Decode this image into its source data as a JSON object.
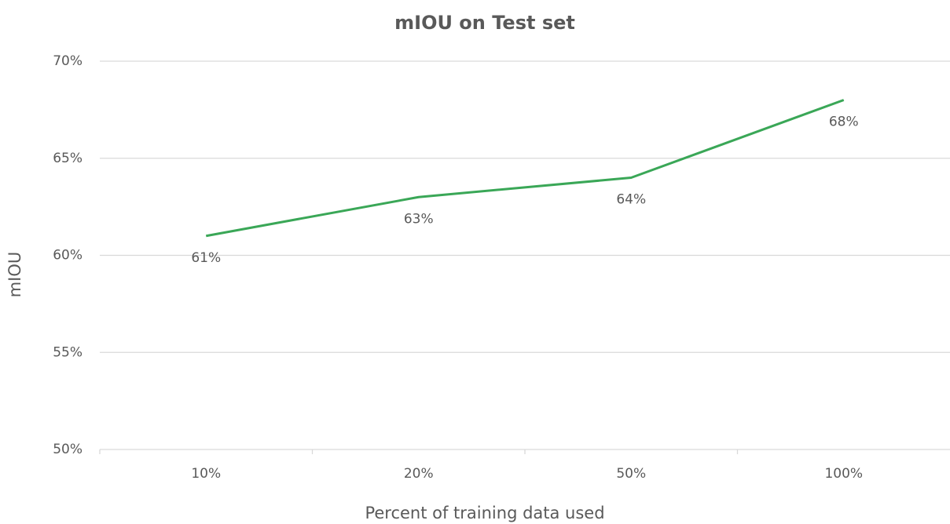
{
  "chart_data": {
    "type": "line",
    "title": "mIOU on Test set",
    "x_label": "Percent of training data used",
    "y_label": "mIOU",
    "categories": [
      "10%",
      "20%",
      "50%",
      "100%"
    ],
    "values": [
      61,
      63,
      64,
      68
    ],
    "value_labels": [
      "61%",
      "63%",
      "64%",
      "68%"
    ],
    "color": "#3aa757",
    "ylim": [
      50,
      70
    ],
    "yticks": [
      {
        "value": 50,
        "label": "50%"
      },
      {
        "value": 55,
        "label": "55%"
      },
      {
        "value": 60,
        "label": "60%"
      },
      {
        "value": 65,
        "label": "65%"
      },
      {
        "value": 70,
        "label": "70%"
      }
    ],
    "grid": true
  }
}
